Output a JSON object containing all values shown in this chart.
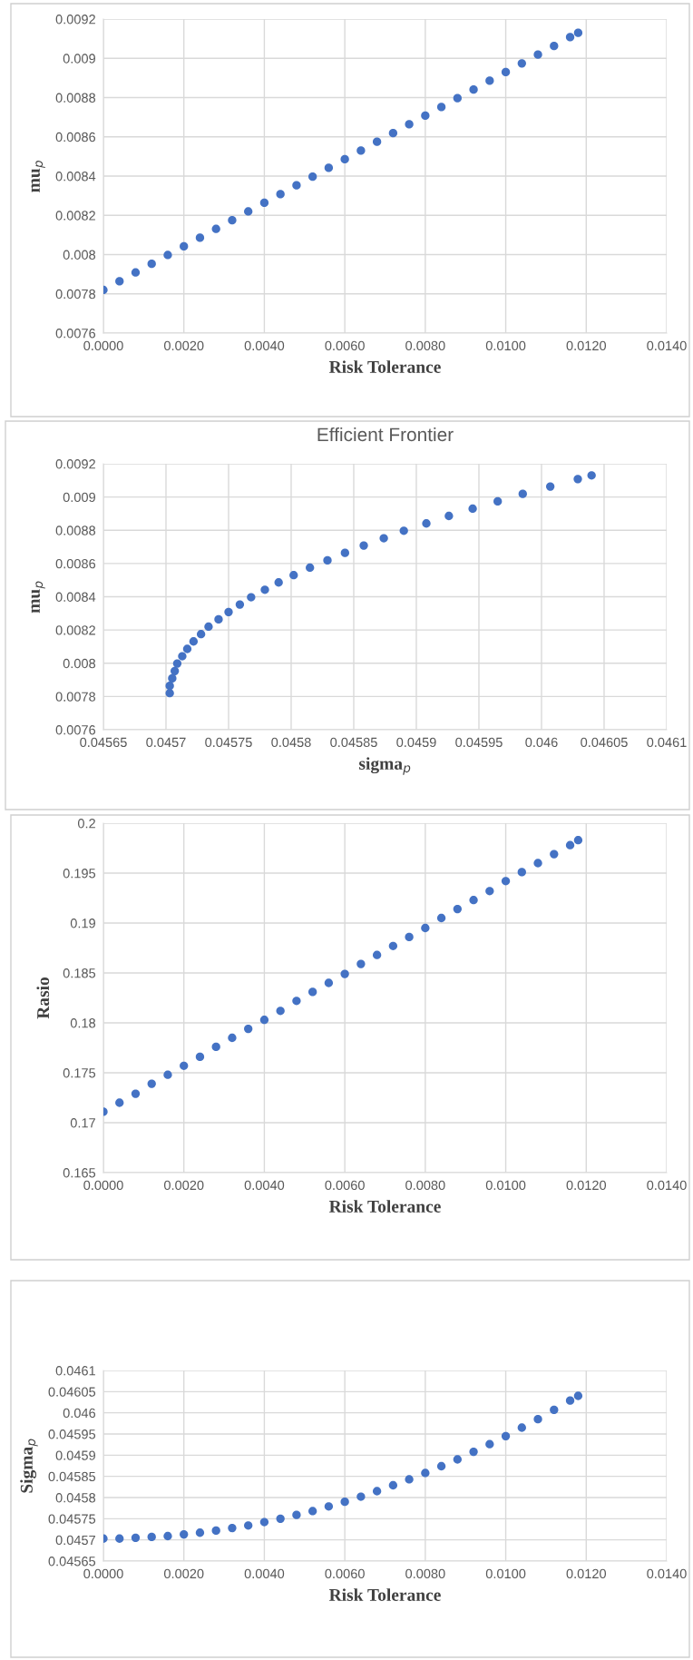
{
  "chart_data": [
    {
      "type": "scatter",
      "xlabel": "Risk Tolerance",
      "ylabel": "mu$_{p}$",
      "marker": "circle",
      "grid": true,
      "x": [
        0,
        0.0004,
        0.0008,
        0.0012,
        0.0016,
        0.002,
        0.0024,
        0.0028,
        0.0032,
        0.0036,
        0.004,
        0.0044,
        0.0048,
        0.0052,
        0.0056,
        0.006,
        0.0064,
        0.0068,
        0.0072,
        0.0076,
        0.008,
        0.0084,
        0.0088,
        0.0092,
        0.0096,
        0.01,
        0.0104,
        0.0108,
        0.0112,
        0.0116,
        0.0118
      ],
      "series": [
        {
          "color": "#4472c4",
          "values": [
            0.00782,
            0.007864,
            0.007909,
            0.007953,
            0.007998,
            0.008042,
            0.008086,
            0.008131,
            0.008175,
            0.00822,
            0.008264,
            0.008308,
            0.008353,
            0.008397,
            0.008442,
            0.008486,
            0.00853,
            0.008575,
            0.008619,
            0.008664,
            0.008708,
            0.008752,
            0.008797,
            0.008841,
            0.008886,
            0.00893,
            0.008974,
            0.009019,
            0.009063,
            0.009108,
            0.00913
          ]
        }
      ],
      "xlim": [
        0,
        0.014
      ],
      "xticks": [
        {
          "value": 0,
          "label": "0.0000"
        },
        {
          "value": 0.002,
          "label": "0.0020"
        },
        {
          "value": 0.004,
          "label": "0.0040"
        },
        {
          "value": 0.006,
          "label": "0.0060"
        },
        {
          "value": 0.008,
          "label": "0.0080"
        },
        {
          "value": 0.01,
          "label": "0.0100"
        },
        {
          "value": 0.012,
          "label": "0.0120"
        },
        {
          "value": 0.014,
          "label": "0.0140"
        }
      ],
      "ylim": [
        0.0076,
        0.0092
      ],
      "yticks": [
        0.0076,
        0.0078,
        0.008,
        0.0082,
        0.0084,
        0.0086,
        0.0088,
        0.009,
        0.0092
      ]
    },
    {
      "type": "scatter",
      "title": "Efficient Frontier",
      "xlabel": "sigma$_{p}$",
      "ylabel": "mu$_{p}$",
      "marker": "circle",
      "grid": true,
      "x": [
        0.045703,
        0.045703,
        0.045705,
        0.045707,
        0.045709,
        0.045713,
        0.045717,
        0.045722,
        0.045728,
        0.045734,
        0.045742,
        0.04575,
        0.045759,
        0.045768,
        0.045779,
        0.04579,
        0.045802,
        0.045815,
        0.045829,
        0.045843,
        0.045858,
        0.045874,
        0.04589,
        0.045908,
        0.045926,
        0.045945,
        0.045965,
        0.045985,
        0.046007,
        0.046029,
        0.04604
      ],
      "series": [
        {
          "color": "#4472c4",
          "values": [
            0.00782,
            0.007864,
            0.007909,
            0.007953,
            0.007998,
            0.008042,
            0.008086,
            0.008131,
            0.008175,
            0.00822,
            0.008264,
            0.008308,
            0.008353,
            0.008397,
            0.008442,
            0.008486,
            0.00853,
            0.008575,
            0.008619,
            0.008664,
            0.008708,
            0.008752,
            0.008797,
            0.008841,
            0.008886,
            0.00893,
            0.008974,
            0.009019,
            0.009063,
            0.009108,
            0.00913
          ]
        }
      ],
      "xlim": [
        0.04565,
        0.0461
      ],
      "xticks": [
        0.04565,
        0.0457,
        0.04575,
        0.0458,
        0.04585,
        0.0459,
        0.04595,
        0.046,
        0.04605,
        0.0461
      ],
      "ylim": [
        0.0076,
        0.0092
      ],
      "yticks": [
        0.0076,
        0.0078,
        0.008,
        0.0082,
        0.0084,
        0.0086,
        0.0088,
        0.009,
        0.0092
      ]
    },
    {
      "type": "scatter",
      "xlabel": "Risk Tolerance",
      "ylabel": "Rasio",
      "marker": "circle",
      "grid": true,
      "x": [
        0,
        0.0004,
        0.0008,
        0.0012,
        0.0016,
        0.002,
        0.0024,
        0.0028,
        0.0032,
        0.0036,
        0.004,
        0.0044,
        0.0048,
        0.0052,
        0.0056,
        0.006,
        0.0064,
        0.0068,
        0.0072,
        0.0076,
        0.008,
        0.0084,
        0.0088,
        0.0092,
        0.0096,
        0.01,
        0.0104,
        0.0108,
        0.0112,
        0.0116,
        0.0118
      ],
      "series": [
        {
          "color": "#4472c4",
          "values": [
            0.1711,
            0.172,
            0.1729,
            0.1739,
            0.1748,
            0.1757,
            0.1766,
            0.1776,
            0.1785,
            0.1794,
            0.1803,
            0.1812,
            0.1822,
            0.1831,
            0.184,
            0.1849,
            0.1859,
            0.1868,
            0.1877,
            0.1886,
            0.1895,
            0.1905,
            0.1914,
            0.1923,
            0.1932,
            0.1942,
            0.1951,
            0.196,
            0.1969,
            0.1978,
            0.1983
          ]
        }
      ],
      "xlim": [
        0,
        0.014
      ],
      "xticks": [
        {
          "value": 0,
          "label": "0.0000"
        },
        {
          "value": 0.002,
          "label": "0.0020"
        },
        {
          "value": 0.004,
          "label": "0.0040"
        },
        {
          "value": 0.006,
          "label": "0.0060"
        },
        {
          "value": 0.008,
          "label": "0.0080"
        },
        {
          "value": 0.01,
          "label": "0.0100"
        },
        {
          "value": 0.012,
          "label": "0.0120"
        },
        {
          "value": 0.014,
          "label": "0.0140"
        }
      ],
      "ylim": [
        0.165,
        0.2
      ],
      "yticks": [
        0.165,
        0.17,
        0.175,
        0.18,
        0.185,
        0.19,
        0.195,
        0.2
      ]
    },
    {
      "type": "scatter",
      "xlabel": "Risk Tolerance",
      "ylabel": "Sigma$_{p}$",
      "marker": "circle",
      "grid": true,
      "x": [
        0,
        0.0004,
        0.0008,
        0.0012,
        0.0016,
        0.002,
        0.0024,
        0.0028,
        0.0032,
        0.0036,
        0.004,
        0.0044,
        0.0048,
        0.0052,
        0.0056,
        0.006,
        0.0064,
        0.0068,
        0.0072,
        0.0076,
        0.008,
        0.0084,
        0.0088,
        0.0092,
        0.0096,
        0.01,
        0.0104,
        0.0108,
        0.0112,
        0.0116,
        0.0118
      ],
      "series": [
        {
          "color": "#4472c4",
          "values": [
            0.045703,
            0.045703,
            0.045705,
            0.045707,
            0.045709,
            0.045713,
            0.045717,
            0.045722,
            0.045728,
            0.045734,
            0.045742,
            0.04575,
            0.045759,
            0.045768,
            0.045779,
            0.04579,
            0.045802,
            0.045815,
            0.045829,
            0.045843,
            0.045858,
            0.045874,
            0.04589,
            0.045908,
            0.045926,
            0.045945,
            0.045965,
            0.045985,
            0.046007,
            0.046029,
            0.04604
          ]
        }
      ],
      "xlim": [
        0,
        0.014
      ],
      "xticks": [
        {
          "value": 0,
          "label": "0.0000"
        },
        {
          "value": 0.002,
          "label": "0.0020"
        },
        {
          "value": 0.004,
          "label": "0.0040"
        },
        {
          "value": 0.006,
          "label": "0.0060"
        },
        {
          "value": 0.008,
          "label": "0.0080"
        },
        {
          "value": 0.01,
          "label": "0.0100"
        },
        {
          "value": 0.012,
          "label": "0.0120"
        },
        {
          "value": 0.014,
          "label": "0.0140"
        }
      ],
      "ylim": [
        0.04565,
        0.0461
      ],
      "yticks": [
        0.04565,
        0.0457,
        0.04575,
        0.0458,
        0.04585,
        0.0459,
        0.04595,
        0.046,
        0.04605,
        0.0461
      ]
    }
  ]
}
